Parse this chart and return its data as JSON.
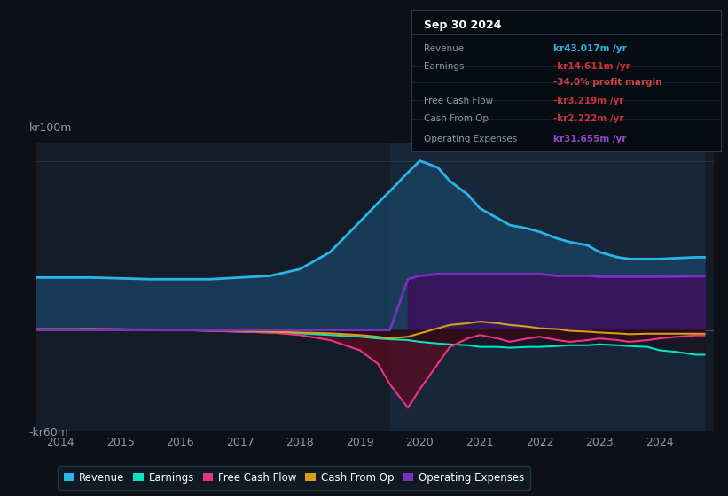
{
  "bg_color": "#0d1117",
  "plot_bg_color": "#131c27",
  "text_color": "#8899aa",
  "ylabel_top": "kr100m",
  "ylabel_bottom": "-kr60m",
  "years": [
    2013.6,
    2014,
    2014.5,
    2015,
    2015.5,
    2016,
    2016.5,
    2017,
    2017.5,
    2018,
    2018.5,
    2019,
    2019.3,
    2019.5,
    2019.8,
    2020,
    2020.3,
    2020.5,
    2020.8,
    2021,
    2021.3,
    2021.5,
    2021.8,
    2022,
    2022.3,
    2022.5,
    2022.8,
    2023,
    2023.3,
    2023.5,
    2023.8,
    2024,
    2024.3,
    2024.6,
    2024.75
  ],
  "revenue": [
    31,
    31,
    31,
    30.5,
    30,
    30,
    30,
    31,
    32,
    36,
    46,
    64,
    75,
    82,
    93,
    100,
    96,
    88,
    80,
    72,
    66,
    62,
    60,
    58,
    54,
    52,
    50,
    46,
    43,
    42,
    42,
    42,
    42.5,
    43,
    43
  ],
  "earnings": [
    0,
    0.3,
    0.3,
    0.2,
    0.2,
    0,
    -0.5,
    -1,
    -1.5,
    -2,
    -3,
    -4,
    -5,
    -5.5,
    -6,
    -7,
    -8,
    -8.5,
    -9,
    -10,
    -10,
    -10.5,
    -10,
    -10,
    -9.5,
    -9,
    -9,
    -8.5,
    -9,
    -9.5,
    -10,
    -12,
    -13,
    -14.6,
    -14.6
  ],
  "free_cash_flow": [
    0,
    0,
    0.5,
    0.5,
    0,
    0,
    -0.5,
    -1,
    -1.5,
    -3,
    -6,
    -12,
    -20,
    -32,
    -46,
    -35,
    -20,
    -10,
    -5,
    -3,
    -5,
    -7,
    -5,
    -4,
    -6,
    -7,
    -6,
    -5,
    -6,
    -7,
    -6,
    -5,
    -4,
    -3.2,
    -3.2
  ],
  "cash_from_op": [
    0.5,
    0.5,
    0.5,
    0.3,
    0.3,
    0.2,
    0,
    -0.5,
    -1,
    -1.5,
    -2,
    -3,
    -4,
    -5,
    -4,
    -2,
    1,
    3,
    4,
    5,
    4,
    3,
    2,
    1,
    0.5,
    -0.5,
    -1,
    -1.5,
    -2,
    -2.5,
    -2.2,
    -2.2,
    -2.2,
    -2.2,
    -2.2
  ],
  "operating_expenses": [
    0,
    0,
    0,
    0,
    0,
    0,
    0,
    0,
    0,
    0,
    0,
    0,
    0,
    0,
    30,
    32,
    33,
    33,
    33,
    33,
    33,
    33,
    33,
    33,
    32,
    32,
    32,
    31.5,
    31.5,
    31.5,
    31.5,
    31.5,
    31.6,
    31.7,
    31.7
  ],
  "revenue_color": "#29b5e8",
  "earnings_color": "#00e5c0",
  "free_cash_flow_color": "#e8358a",
  "cash_from_op_color": "#d4a017",
  "operating_expenses_color": "#7b2fbe",
  "revenue_fill": "#1a4060",
  "fcf_fill_neg": "#5a0a20",
  "opex_fill": "#3d1060",
  "earnings_fill": "#002a25",
  "shade_start": 2019.5,
  "shade_end": 2024.75,
  "shade_color": "#1a2d45",
  "xlim": [
    2013.6,
    2024.9
  ],
  "ylim": [
    -60,
    110
  ],
  "xticks": [
    2014,
    2015,
    2016,
    2017,
    2018,
    2019,
    2020,
    2021,
    2022,
    2023,
    2024
  ],
  "info_box_title": "Sep 30 2024",
  "info_rows": [
    {
      "label": "Revenue",
      "value": "kr43.017m /yr",
      "value_color": "#29b5e8"
    },
    {
      "label": "Earnings",
      "value": "-kr14.611m /yr",
      "value_color": "#cc3333"
    },
    {
      "label": "",
      "value": "-34.0% profit margin",
      "value_color": "#cc4444"
    },
    {
      "label": "Free Cash Flow",
      "value": "-kr3.219m /yr",
      "value_color": "#cc3333"
    },
    {
      "label": "Cash From Op",
      "value": "-kr2.222m /yr",
      "value_color": "#cc3333"
    },
    {
      "label": "Operating Expenses",
      "value": "kr31.655m /yr",
      "value_color": "#9944cc"
    }
  ],
  "legend_items": [
    {
      "label": "Revenue",
      "color": "#29b5e8"
    },
    {
      "label": "Earnings",
      "color": "#00e5c0"
    },
    {
      "label": "Free Cash Flow",
      "color": "#e8358a"
    },
    {
      "label": "Cash From Op",
      "color": "#d4a017"
    },
    {
      "label": "Operating Expenses",
      "color": "#7b2fbe"
    }
  ]
}
